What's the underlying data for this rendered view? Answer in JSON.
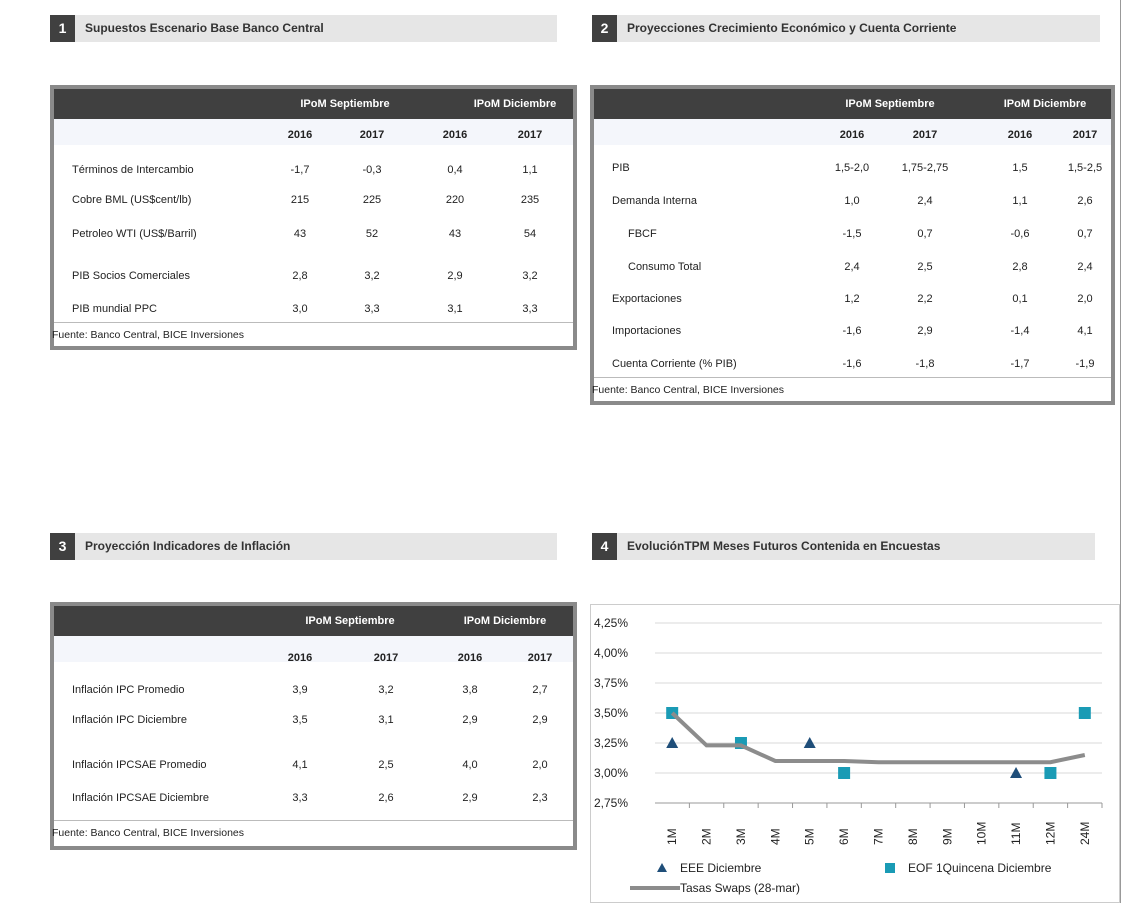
{
  "panels": [
    {
      "number": "1",
      "title": "Supuestos Escenario Base Banco Central",
      "table": {
        "groups": [
          "IPoM Septiembre",
          "IPoM Diciembre"
        ],
        "years": [
          "2016",
          "2017",
          "2016",
          "2017"
        ],
        "rows": [
          {
            "label": "Términos de Intercambio",
            "values": [
              "-1,7",
              "-0,3",
              "0,4",
              "1,1"
            ]
          },
          {
            "label": "Cobre BML (US$cent/lb)",
            "values": [
              "215",
              "225",
              "220",
              "235"
            ]
          },
          {
            "label": "Petroleo WTI (US$/Barril)",
            "values": [
              "43",
              "52",
              "43",
              "54"
            ]
          },
          {
            "label": "PIB Socios Comerciales",
            "values": [
              "2,8",
              "3,2",
              "2,9",
              "3,2"
            ]
          },
          {
            "label": "PIB mundial PPC",
            "values": [
              "3,0",
              "3,3",
              "3,1",
              "3,3"
            ]
          }
        ],
        "source": "Fuente: Banco Central, BICE Inversiones"
      }
    },
    {
      "number": "2",
      "title": "Proyecciones Crecimiento Económico y Cuenta Corriente",
      "table": {
        "groups": [
          "IPoM Septiembre",
          "IPoM Diciembre"
        ],
        "years": [
          "2016",
          "2017",
          "2016",
          "2017"
        ],
        "rows": [
          {
            "label": "PIB",
            "values": [
              "1,5-2,0",
              "1,75-2,75",
              "1,5",
              "1,5-2,5"
            ]
          },
          {
            "label": "Demanda Interna",
            "values": [
              "1,0",
              "2,4",
              "1,1",
              "2,6"
            ]
          },
          {
            "label": "FBCF",
            "values": [
              "-1,5",
              "0,7",
              "-0,6",
              "0,7"
            ]
          },
          {
            "label": "Consumo Total",
            "values": [
              "2,4",
              "2,5",
              "2,8",
              "2,4"
            ]
          },
          {
            "label": "Exportaciones",
            "values": [
              "1,2",
              "2,2",
              "0,1",
              "2,0"
            ]
          },
          {
            "label": "Importaciones",
            "values": [
              "-1,6",
              "2,9",
              "-1,4",
              "4,1"
            ]
          },
          {
            "label": "Cuenta Corriente (% PIB)",
            "values": [
              "-1,6",
              "-1,8",
              "-1,7",
              "-1,9"
            ]
          }
        ],
        "source": "Fuente: Banco Central, BICE Inversiones"
      }
    },
    {
      "number": "3",
      "title": "Proyección Indicadores de Inflación",
      "table": {
        "groups": [
          "IPoM Septiembre",
          "IPoM Diciembre"
        ],
        "years": [
          "2016",
          "2017",
          "2016",
          "2017"
        ],
        "rows": [
          {
            "label": "Inflación IPC Promedio",
            "values": [
              "3,9",
              "3,2",
              "3,8",
              "2,7"
            ]
          },
          {
            "label": "Inflación IPC Diciembre",
            "values": [
              "3,5",
              "3,1",
              "2,9",
              "2,9"
            ]
          },
          {
            "label": "Inflación IPCSAE Promedio",
            "values": [
              "4,1",
              "2,5",
              "4,0",
              "2,0"
            ]
          },
          {
            "label": "Inflación IPCSAE Diciembre",
            "values": [
              "3,3",
              "2,6",
              "2,9",
              "2,3"
            ]
          }
        ],
        "source": "Fuente: Banco Central, BICE Inversiones"
      }
    }
  ],
  "chart_data": {
    "type": "line",
    "number": "4",
    "title": "EvoluciónTPM Meses Futuros Contenida en Encuestas",
    "categories": [
      "1M",
      "2M",
      "3M",
      "4M",
      "5M",
      "6M",
      "7M",
      "8M",
      "9M",
      "10M",
      "11M",
      "12M",
      "24M"
    ],
    "series": [
      {
        "name": "EEE Diciembre",
        "color": "#1f4e79",
        "marker": "triangle",
        "values": [
          3.25,
          null,
          null,
          null,
          3.25,
          null,
          null,
          null,
          null,
          null,
          3.0,
          null,
          null
        ]
      },
      {
        "name": "EOF 1Quincena Diciembre",
        "color": "#1a9bb5",
        "marker": "square",
        "values": [
          3.5,
          null,
          3.25,
          null,
          null,
          3.0,
          null,
          null,
          null,
          null,
          null,
          3.0,
          3.5
        ]
      },
      {
        "name": "Tasas Swaps (28-mar)",
        "color": "#8c8c8c",
        "marker": "line",
        "values": [
          3.5,
          3.23,
          3.23,
          3.1,
          3.1,
          3.1,
          3.09,
          3.09,
          3.09,
          3.09,
          3.09,
          3.09,
          3.15
        ]
      }
    ],
    "ylim": [
      2.75,
      4.25
    ],
    "yticks": [
      {
        "value": 2.75,
        "label": "2,75%"
      },
      {
        "value": 3.0,
        "label": "3,00%"
      },
      {
        "value": 3.25,
        "label": "3,25%"
      },
      {
        "value": 3.5,
        "label": "3,50%"
      },
      {
        "value": 3.75,
        "label": "3,75%"
      },
      {
        "value": 4.0,
        "label": "4,00%"
      },
      {
        "value": 4.25,
        "label": "4,25%"
      }
    ],
    "grid": true
  }
}
